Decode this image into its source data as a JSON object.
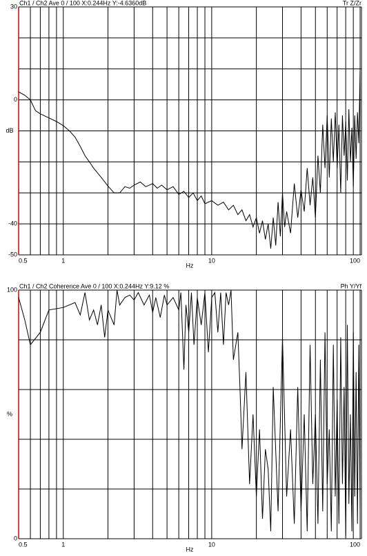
{
  "chart_data": [
    {
      "type": "line",
      "title": "Ch1 / Ch2  Ave 0 / 100  X:0.244Hz  Y:-4.6360dB",
      "corner_label": "Tr Z/Zr",
      "xlabel": "Hz",
      "ylabel": "dB",
      "xscale": "log",
      "xlim": [
        0.5,
        100
      ],
      "xticks": [
        0.5,
        1,
        10,
        100
      ],
      "xgrid": [
        0.6,
        0.7,
        0.8,
        0.9,
        2,
        3,
        4,
        5,
        6,
        7,
        8,
        9,
        20,
        30,
        40,
        50,
        60,
        70,
        80,
        90
      ],
      "ylim": [
        -50,
        30
      ],
      "yticks": [
        30,
        0,
        -40,
        -50
      ],
      "ygrid": [
        20,
        10,
        -10,
        -20,
        -30
      ],
      "x": [
        0.5,
        0.55,
        0.6,
        0.65,
        0.7,
        0.8,
        0.9,
        1,
        1.1,
        1.2,
        1.3,
        1.4,
        1.5,
        1.6,
        1.8,
        2,
        2.2,
        2.4,
        2.6,
        2.8,
        3,
        3.3,
        3.6,
        4,
        4.3,
        4.6,
        5,
        5.5,
        6,
        6.5,
        7,
        7.5,
        8,
        8.5,
        9,
        10,
        11,
        12,
        13,
        14,
        15,
        16,
        17,
        18,
        19,
        20,
        21,
        22,
        23,
        24,
        25,
        26,
        27,
        28,
        29,
        30,
        31,
        32,
        34,
        36,
        38,
        40,
        42,
        44,
        46,
        48,
        50,
        52,
        54,
        56,
        58,
        60,
        62,
        64,
        66,
        68,
        70,
        72,
        74,
        76,
        78,
        80,
        82,
        84,
        86,
        88,
        90,
        92,
        94,
        96,
        98,
        100
      ],
      "series": [
        {
          "color": "#000000",
          "values": [
            2.6,
            1.5,
            0,
            -3.5,
            -4.5,
            -5.8,
            -7,
            -8.3,
            -10,
            -12,
            -15,
            -18,
            -20,
            -22,
            -25,
            -27.8,
            -30,
            -30,
            -28,
            -28.5,
            -27.5,
            -26.5,
            -28,
            -27,
            -28.5,
            -27.5,
            -29,
            -28,
            -30.5,
            -29.5,
            -31.5,
            -30,
            -32.5,
            -31,
            -33.5,
            -32.5,
            -34,
            -33,
            -35.5,
            -34,
            -37,
            -35.5,
            -39,
            -37,
            -41,
            -38,
            -43,
            -39,
            -45,
            -40,
            -48,
            -38,
            -47,
            -33,
            -44,
            -30,
            -41,
            -36,
            -43,
            -27,
            -38,
            -29,
            -36,
            -22,
            -34,
            -25,
            -38,
            -18,
            -30,
            -8,
            -22,
            -5,
            -25,
            -6,
            -20,
            -4,
            -22,
            -8,
            -30,
            -5,
            -18,
            -7,
            -26,
            -3,
            -20,
            -9,
            -28,
            -5,
            -19,
            -4,
            -14,
            10
          ]
        }
      ]
    },
    {
      "type": "line",
      "title": "Ch1 / Ch2  Coherence Ave 0 / 100  X:0.244Hz  Y:9.12 %",
      "corner_label": "Ph Y/Yf",
      "xlabel": "Hz",
      "ylabel": "%",
      "xscale": "log",
      "xlim": [
        0.5,
        100
      ],
      "xticks": [
        0.5,
        1,
        10,
        100
      ],
      "xgrid": [
        0.6,
        0.7,
        0.8,
        0.9,
        2,
        3,
        4,
        5,
        6,
        7,
        8,
        9,
        20,
        30,
        40,
        50,
        60,
        70,
        80,
        90
      ],
      "ylim": [
        0,
        100
      ],
      "yticks": [
        100,
        0
      ],
      "ygrid": [
        80,
        60,
        40,
        20
      ],
      "x": [
        0.5,
        0.55,
        0.6,
        0.7,
        0.8,
        1,
        1.2,
        1.3,
        1.4,
        1.5,
        1.6,
        1.7,
        1.8,
        1.9,
        2,
        2.2,
        2.3,
        2.4,
        2.6,
        2.8,
        3,
        3.2,
        3.5,
        3.8,
        4,
        4.2,
        4.5,
        4.8,
        5,
        5.5,
        6,
        6.2,
        6.5,
        6.7,
        7,
        7.3,
        7.6,
        8,
        8.5,
        9,
        9.5,
        10,
        10.5,
        11,
        11.5,
        12,
        12.5,
        13,
        13.5,
        14,
        15,
        15.5,
        16,
        17,
        18,
        19,
        20,
        21,
        22,
        23,
        24,
        25,
        26,
        28,
        30,
        32,
        34,
        36,
        38,
        40,
        42,
        44,
        46,
        48,
        50,
        52,
        54,
        56,
        58,
        60,
        62,
        64,
        66,
        68,
        70,
        72,
        74,
        76,
        78,
        80,
        82,
        84,
        86,
        88,
        90,
        92,
        94,
        96,
        98,
        100
      ],
      "series": [
        {
          "color": "#000000",
          "values": [
            97,
            88,
            78,
            83,
            92,
            93,
            95,
            90,
            99,
            88,
            92,
            86,
            94,
            81,
            92,
            86,
            100,
            94,
            97,
            98,
            96,
            99,
            94,
            98,
            91,
            97,
            89,
            98,
            94,
            97,
            92,
            99,
            68,
            94,
            83,
            99,
            78,
            97,
            86,
            99,
            75,
            97,
            99,
            83,
            99,
            78,
            99,
            94,
            100,
            72,
            83,
            61,
            36,
            67,
            22,
            50,
            17,
            44,
            8,
            36,
            28,
            3,
            61,
            11,
            81,
            17,
            44,
            6,
            61,
            11,
            50,
            3,
            78,
            22,
            50,
            6,
            72,
            11,
            83,
            22,
            44,
            3,
            78,
            17,
            56,
            6,
            81,
            22,
            61,
            1,
            86,
            14,
            50,
            3,
            83,
            17,
            67,
            6,
            78,
            11
          ]
        }
      ]
    }
  ]
}
